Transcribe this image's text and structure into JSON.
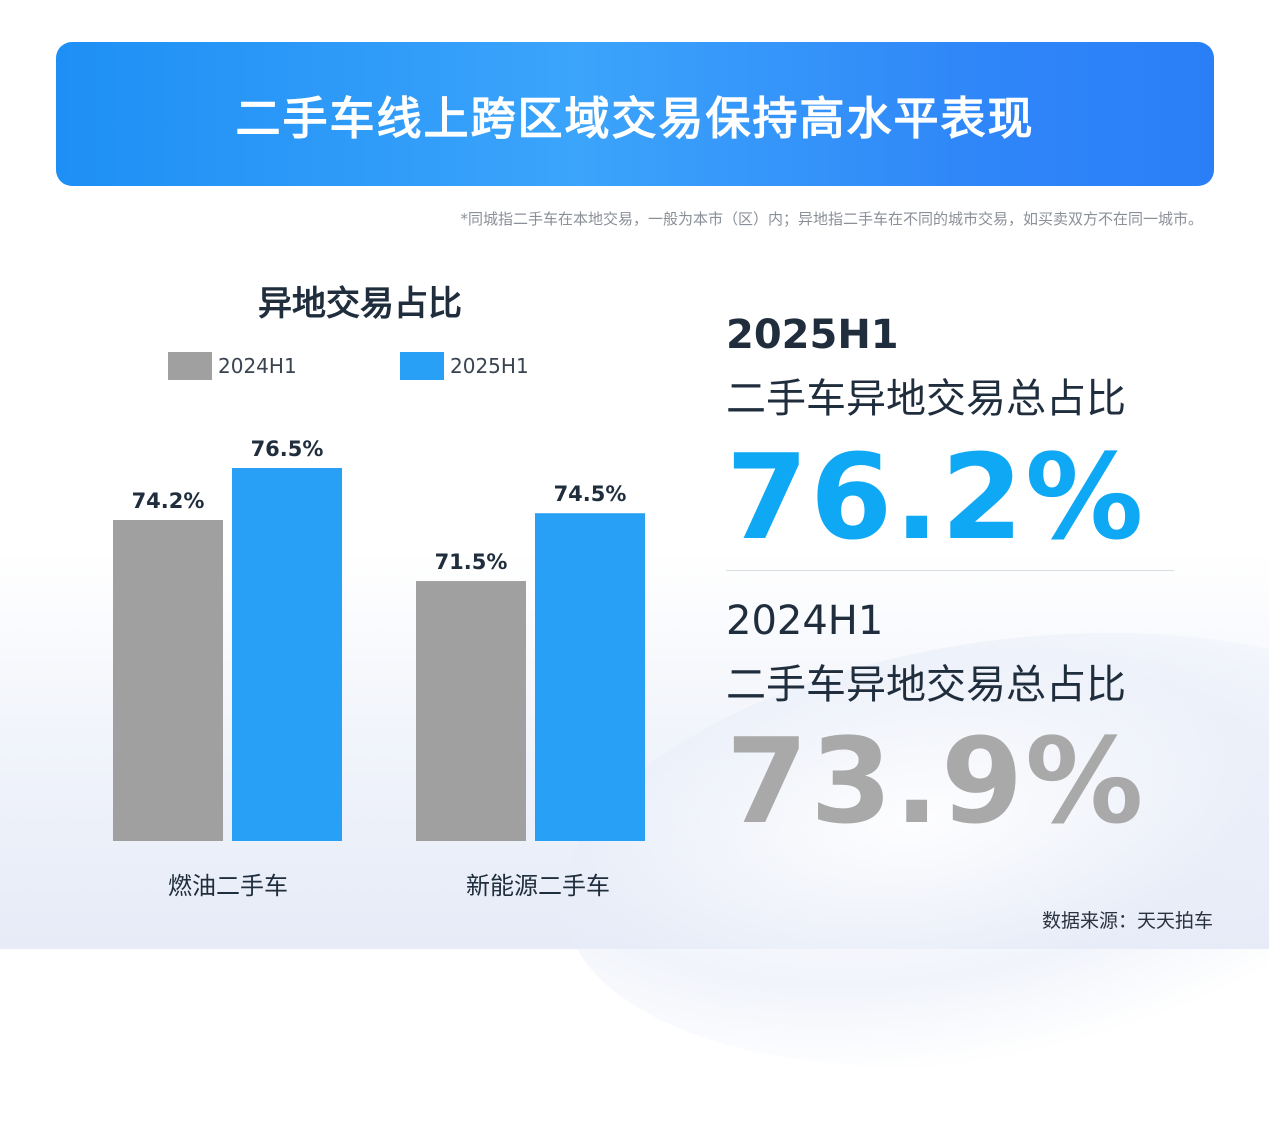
{
  "header": {
    "title": "二手车线上跨区域交易保持高水平表现"
  },
  "note": "*同城指二手车在本地交易，一般为本市（区）内；异地指二手车在不同的城市交易，如买卖双方不在同一城市。",
  "chart_data": {
    "type": "bar",
    "title": "异地交易占比",
    "categories": [
      "燃油二手车",
      "新能源二手车"
    ],
    "series": [
      {
        "name": "2024H1",
        "values": [
          74.2,
          71.5
        ],
        "labels": [
          "74.2%",
          "71.5%"
        ],
        "color": "#a0a0a0"
      },
      {
        "name": "2025H1",
        "values": [
          76.5,
          74.5
        ],
        "labels": [
          "76.5%",
          "74.5%"
        ],
        "color": "#27a0f5"
      }
    ],
    "legend": "top",
    "grid": false
  },
  "stats": {
    "current_year": "2025H1",
    "current_label": "二手车异地交易总占比",
    "current_value": "76.2%",
    "current_color": "#0fa8f4",
    "previous_year": "2024H1",
    "previous_label": "二手车异地交易总占比",
    "previous_value": "73.9%",
    "previous_color": "#a9a9a9"
  },
  "source": "数据来源：天天拍车"
}
